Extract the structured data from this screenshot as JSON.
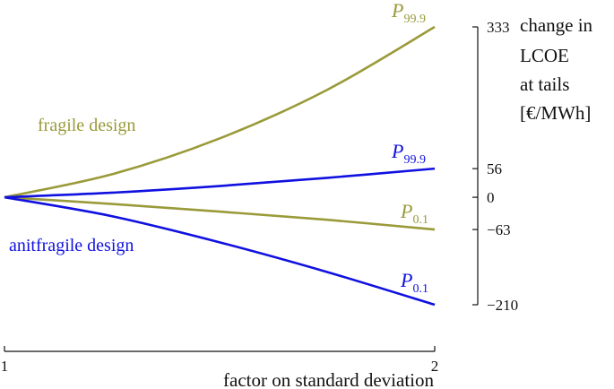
{
  "chart_data": {
    "type": "line",
    "xlabel": "factor on standard deviation",
    "ylabel_lines": [
      "change in",
      "LCOE",
      "at tails",
      "[€/MWh]"
    ],
    "x_ticks": [
      "1",
      "2"
    ],
    "x_range": [
      1,
      2
    ],
    "y_ticks": [
      333,
      56,
      0,
      -63,
      -210
    ],
    "y_tick_labels": [
      "333",
      "56",
      "0",
      "−63",
      "−210"
    ],
    "y_range": [
      -210,
      333
    ],
    "series": [
      {
        "design": "fragile",
        "label_P": "P",
        "label_sub": "99.9",
        "color": "#9a9a3a",
        "x": [
          1,
          1.25,
          1.5,
          1.75,
          2
        ],
        "values": [
          0,
          45,
          115,
          210,
          333
        ]
      },
      {
        "design": "fragile",
        "label_P": "P",
        "label_sub": "0.1",
        "color": "#9a9a3a",
        "x": [
          1,
          1.25,
          1.5,
          1.75,
          2
        ],
        "values": [
          0,
          -13,
          -28,
          -44,
          -63
        ]
      },
      {
        "design": "antifragile",
        "label_P": "P",
        "label_sub": "99.9",
        "color": "#1010e0",
        "x": [
          1,
          1.25,
          1.5,
          1.75,
          2
        ],
        "values": [
          0,
          9,
          22,
          38,
          56
        ]
      },
      {
        "design": "antifragile",
        "label_P": "P",
        "label_sub": "0.1",
        "color": "#1010e0",
        "x": [
          1,
          1.25,
          1.5,
          1.75,
          2
        ],
        "values": [
          0,
          -37,
          -88,
          -146,
          -210
        ]
      }
    ],
    "annotations": {
      "fragile_design": "fragile design",
      "antifragile_design": "anitfragile design"
    },
    "colors": {
      "fragile": "#9a9a3a",
      "antifragile": "#1010e0",
      "axis": "#111111"
    },
    "grid": false,
    "legend": "none"
  }
}
